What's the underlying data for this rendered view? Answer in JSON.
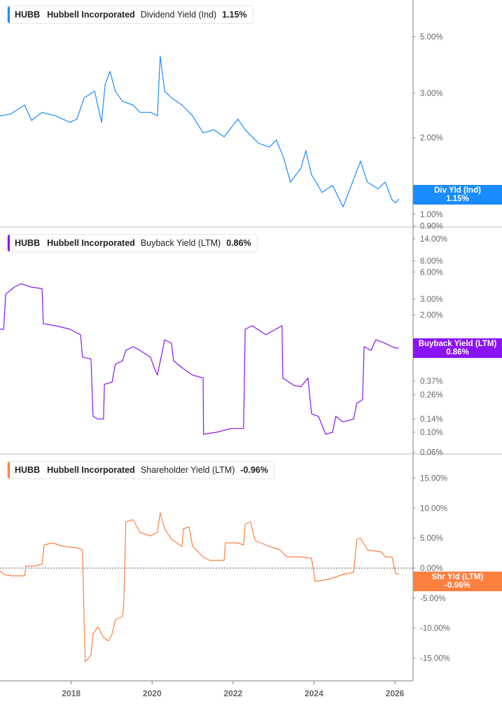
{
  "colors": {
    "dividend": "#1a8cff",
    "buyback": "#8a14f5",
    "shareholder": "#ff7f3f",
    "axis": "#aaaaaa",
    "text": "#666666"
  },
  "legends": [
    {
      "ticker": "HUBB",
      "company": "Hubbell Incorporated",
      "metric": "Dividend Yield (Ind)",
      "value": "1.15%"
    },
    {
      "ticker": "HUBB",
      "company": "Hubbell Incorporated",
      "metric": "Buyback Yield (LTM)",
      "value": "0.86%"
    },
    {
      "ticker": "HUBB",
      "company": "Hubbell Incorporated",
      "metric": "Shareholder Yield (LTM)",
      "value": "-0.96%"
    }
  ],
  "tags": [
    {
      "label": "Div Yld (Ind)",
      "value": "1.15%"
    },
    {
      "label": "Buyback Yield (LTM)",
      "value": "0.86%"
    },
    {
      "label": "Shr Yld (LTM)",
      "value": "-0.96%"
    }
  ],
  "chart_data": [
    {
      "type": "line",
      "scale": "log",
      "series": [
        {
          "name": "Dividend Yield (Ind)",
          "x": [
            2016.24,
            2016.5,
            2016.85,
            2017.02,
            2017.28,
            2017.62,
            2017.97,
            2018.14,
            2018.32,
            2018.58,
            2018.75,
            2018.84,
            2018.96,
            2019.09,
            2019.27,
            2019.53,
            2019.7,
            2019.96,
            2020.13,
            2020.2,
            2020.31,
            2020.48,
            2020.74,
            2021.0,
            2021.26,
            2021.52,
            2021.78,
            2022.12,
            2022.3,
            2022.47,
            2022.64,
            2022.9,
            2023.07,
            2023.25,
            2023.42,
            2023.68,
            2023.8,
            2023.94,
            2024.2,
            2024.46,
            2024.72,
            2024.89,
            2025.15,
            2025.32,
            2025.58,
            2025.76,
            2025.93,
            2026.02,
            2026.1
          ],
          "y": [
            2.44,
            2.48,
            2.69,
            2.34,
            2.52,
            2.44,
            2.3,
            2.37,
            2.87,
            3.05,
            2.3,
            3.25,
            3.65,
            3.05,
            2.78,
            2.69,
            2.52,
            2.52,
            2.44,
            4.19,
            3.05,
            2.87,
            2.69,
            2.44,
            2.09,
            2.15,
            2.02,
            2.37,
            2.15,
            2.02,
            1.9,
            1.84,
            1.96,
            1.67,
            1.34,
            1.52,
            1.78,
            1.43,
            1.22,
            1.3,
            1.07,
            1.26,
            1.62,
            1.34,
            1.26,
            1.34,
            1.14,
            1.11,
            1.15
          ]
        }
      ],
      "yticks": [
        {
          "v": 5,
          "label": "5.00%"
        },
        {
          "v": 3,
          "label": "3.00%"
        },
        {
          "v": 2,
          "label": "2.00%"
        },
        {
          "v": 1,
          "label": "1.00%"
        },
        {
          "v": 0.9,
          "label": "0.90%"
        }
      ]
    },
    {
      "type": "line",
      "scale": "log",
      "series": [
        {
          "name": "Buyback Yield (LTM)",
          "x": [
            2016.24,
            2016.33,
            2016.38,
            2016.59,
            2016.76,
            2017.02,
            2017.28,
            2017.31,
            2017.62,
            2017.97,
            2018.23,
            2018.28,
            2018.49,
            2018.54,
            2018.66,
            2018.8,
            2018.82,
            2019.01,
            2019.09,
            2019.27,
            2019.35,
            2019.53,
            2019.7,
            2019.96,
            2020.05,
            2020.13,
            2020.31,
            2020.48,
            2020.53,
            2020.74,
            2021.0,
            2021.26,
            2021.27,
            2021.6,
            2021.95,
            2022.26,
            2022.3,
            2022.47,
            2022.81,
            2022.99,
            2023.21,
            2023.23,
            2023.51,
            2023.68,
            2023.85,
            2023.94,
            2024.11,
            2024.29,
            2024.46,
            2024.54,
            2024.72,
            2024.98,
            2025.06,
            2025.2,
            2025.24,
            2025.41,
            2025.53,
            2025.76,
            2025.93,
            2026.02,
            2026.1
          ],
          "y": [
            1.39,
            1.39,
            3.4,
            4.07,
            4.45,
            4.07,
            3.93,
            1.6,
            1.52,
            1.39,
            1.21,
            0.68,
            0.65,
            0.15,
            0.14,
            0.14,
            0.34,
            0.36,
            0.57,
            0.62,
            0.81,
            0.89,
            0.81,
            0.68,
            0.52,
            0.43,
            1.06,
            0.97,
            0.62,
            0.52,
            0.43,
            0.4,
            0.095,
            0.1,
            0.11,
            0.11,
            1.39,
            1.52,
            1.21,
            1.34,
            1.52,
            0.4,
            0.33,
            0.32,
            0.4,
            0.16,
            0.15,
            0.095,
            0.1,
            0.15,
            0.13,
            0.14,
            0.21,
            0.23,
            0.89,
            0.81,
            1.06,
            0.97,
            0.89,
            0.86,
            0.86
          ]
        }
      ],
      "yticks": [
        {
          "v": 14,
          "label": "14.00%"
        },
        {
          "v": 8,
          "label": "8.00%"
        },
        {
          "v": 6,
          "label": "6.00%"
        },
        {
          "v": 3,
          "label": "3.00%"
        },
        {
          "v": 2,
          "label": "2.00%"
        },
        {
          "v": 0.37,
          "label": "0.37%"
        },
        {
          "v": 0.26,
          "label": "0.26%"
        },
        {
          "v": 0.14,
          "label": "0.14%"
        },
        {
          "v": 0.1,
          "label": "0.10%"
        },
        {
          "v": 0.06,
          "label": "0.06%"
        }
      ]
    },
    {
      "type": "line",
      "scale": "linear",
      "reference_line": 0,
      "series": [
        {
          "name": "Shareholder Yield (LTM)",
          "x": [
            2016.24,
            2016.33,
            2016.5,
            2016.85,
            2016.88,
            2017.11,
            2017.28,
            2017.33,
            2017.54,
            2017.8,
            2018.14,
            2018.28,
            2018.32,
            2018.35,
            2018.49,
            2018.54,
            2018.66,
            2018.8,
            2018.92,
            2019.01,
            2019.09,
            2019.27,
            2019.3,
            2019.35,
            2019.53,
            2019.7,
            2019.96,
            2020.13,
            2020.2,
            2020.31,
            2020.48,
            2020.74,
            2020.77,
            2020.91,
            2021.0,
            2021.26,
            2021.43,
            2021.78,
            2021.81,
            2022.12,
            2022.26,
            2022.3,
            2022.43,
            2022.55,
            2022.9,
            2023.16,
            2023.33,
            2023.68,
            2023.94,
            2024.03,
            2024.37,
            2024.72,
            2024.98,
            2025.06,
            2025.15,
            2025.32,
            2025.67,
            2025.76,
            2025.93,
            2026.02,
            2026.1
          ],
          "y": [
            -0.47,
            -1.05,
            -1.28,
            -1.28,
            0.35,
            0.35,
            0.7,
            3.85,
            4.2,
            3.62,
            3.38,
            3.03,
            -9.22,
            -15.64,
            -14.47,
            -10.97,
            -9.8,
            -11.55,
            -12.14,
            -10.97,
            -8.63,
            -8.05,
            -5.72,
            7.7,
            8.05,
            5.95,
            5.37,
            5.95,
            9.22,
            6.53,
            4.78,
            3.62,
            6.53,
            6.88,
            3.62,
            1.87,
            1.28,
            1.28,
            4.2,
            4.2,
            3.85,
            7.35,
            7.7,
            4.55,
            3.62,
            3.03,
            1.87,
            1.87,
            1.63,
            -2.22,
            -1.87,
            -1.05,
            -0.7,
            4.78,
            5.02,
            3.03,
            2.68,
            1.87,
            1.87,
            -0.96,
            -0.96
          ]
        }
      ],
      "yticks": [
        {
          "v": 15,
          "label": "15.00%"
        },
        {
          "v": 10,
          "label": "10.00%"
        },
        {
          "v": 5,
          "label": "5.00%"
        },
        {
          "v": 0,
          "label": "0.00%"
        },
        {
          "v": -5,
          "label": "-5.00%"
        },
        {
          "v": -10,
          "label": "-10.00%"
        },
        {
          "v": -15,
          "label": "-15.00%"
        }
      ]
    }
  ],
  "xaxis": {
    "ticks": [
      {
        "v": 2018,
        "label": "2018"
      },
      {
        "v": 2020,
        "label": "2020"
      },
      {
        "v": 2022,
        "label": "2022"
      },
      {
        "v": 2024,
        "label": "2024"
      },
      {
        "v": 2026,
        "label": "2026"
      }
    ],
    "range": [
      2016.24,
      2026.45
    ]
  }
}
